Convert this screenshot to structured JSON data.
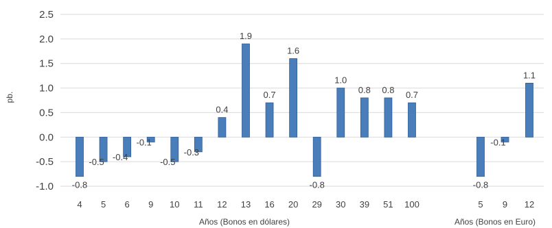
{
  "chart_data": {
    "type": "bar",
    "ylabel": "pb.",
    "ylim": [
      -1.0,
      2.5
    ],
    "yticks": [
      "2.5",
      "2.0",
      "1.5",
      "1.0",
      "0.5",
      "0.0",
      "-0.5",
      "-1.0"
    ],
    "ytick_values": [
      2.5,
      2.0,
      1.5,
      1.0,
      0.5,
      0.0,
      -0.5,
      -1.0
    ],
    "grid": true,
    "bar_color": "#4a7ebb",
    "groups": [
      {
        "xlabel": "Años (Bonos en dólares)",
        "categories": [
          "4",
          "5",
          "6",
          "9",
          "10",
          "11",
          "12",
          "13",
          "16",
          "20",
          "29",
          "30",
          "39",
          "51",
          "100"
        ],
        "values": [
          -0.8,
          -0.5,
          -0.4,
          -0.1,
          -0.5,
          -0.3,
          0.4,
          1.9,
          0.7,
          1.6,
          -0.8,
          1.0,
          0.8,
          0.8,
          0.7
        ],
        "labels": [
          "-0.8",
          "-0.5",
          "-0.4",
          "-0.1",
          "-0.5",
          "-0.3",
          "0.4",
          "1.9",
          "0.7",
          "1.6",
          "-0.8",
          "1.0",
          "0.8",
          "0.8",
          "0.7"
        ]
      },
      {
        "xlabel": "Años (Bonos en Euro)",
        "categories": [
          "5",
          "9",
          "12"
        ],
        "values": [
          -0.8,
          -0.1,
          1.1
        ],
        "labels": [
          "-0.8",
          "-0.1",
          "1.1"
        ]
      }
    ]
  }
}
